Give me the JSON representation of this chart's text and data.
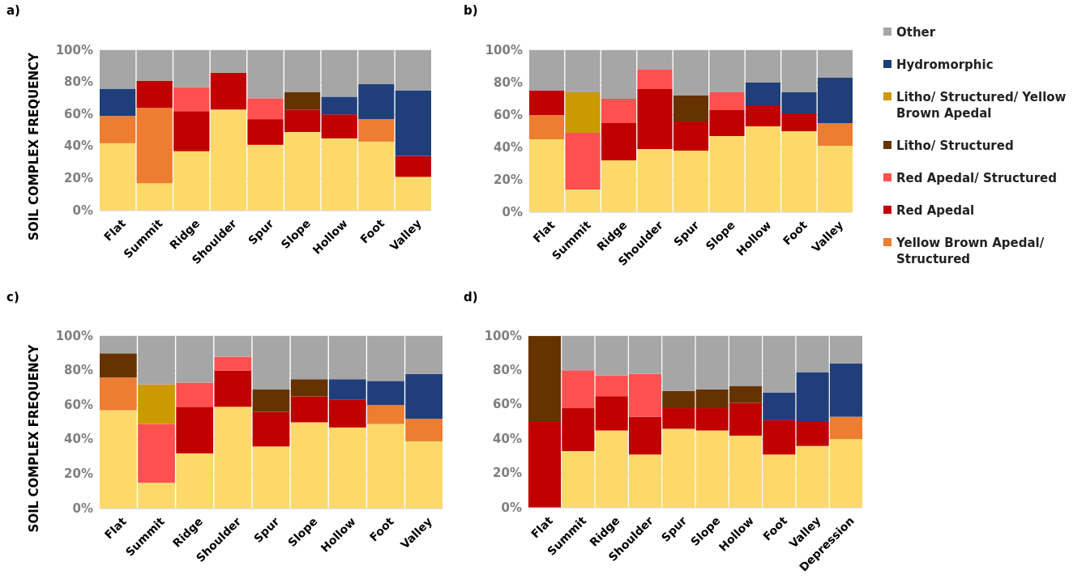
{
  "chart_data": [
    {
      "type": "bar",
      "title": "a)",
      "ylabel": "SOIL COMPLEX FREQUENCY",
      "stacked": true,
      "grid": "y",
      "legend": false,
      "categories": [
        "Flat",
        "Summit",
        "Ridge",
        "Shoulder",
        "Spur",
        "Slope",
        "Hollow",
        "Foot",
        "Valley"
      ],
      "ylim": [
        0,
        100
      ],
      "yticks": [
        {
          "value": 0,
          "label": "0%"
        },
        {
          "value": 20,
          "label": "20%"
        },
        {
          "value": 40,
          "label": "40%"
        },
        {
          "value": 60,
          "label": "60%"
        },
        {
          "value": 80,
          "label": "80%"
        },
        {
          "value": 100,
          "label": "100%"
        }
      ],
      "series": [
        {
          "color": "#fdd96b",
          "values": [
            42,
            17,
            37,
            63,
            41,
            49,
            45,
            43,
            21
          ]
        },
        {
          "color": "#ed7d31",
          "values": [
            17,
            47,
            null,
            null,
            null,
            null,
            null,
            14,
            null
          ]
        },
        {
          "color": "#c00000",
          "values": [
            null,
            17,
            25,
            23,
            16,
            14,
            15,
            null,
            13
          ]
        },
        {
          "color": "#ff5050",
          "values": [
            null,
            null,
            15,
            null,
            13,
            null,
            null,
            null,
            null
          ]
        },
        {
          "color": "#663300",
          "values": [
            null,
            null,
            null,
            null,
            null,
            11,
            null,
            null,
            null
          ]
        },
        {
          "color": "#203f7a",
          "values": [
            17,
            null,
            null,
            null,
            null,
            null,
            11,
            22,
            41
          ]
        },
        {
          "color": "#a6a6a6",
          "values": [
            24,
            19,
            23,
            14,
            30,
            26,
            29,
            21,
            25
          ]
        }
      ]
    },
    {
      "type": "bar",
      "title": "b)",
      "stacked": true,
      "grid": "y",
      "legend": "right",
      "categories": [
        "Flat",
        "Summit",
        "Ridge",
        "Shoulder",
        "Spur",
        "Slope",
        "Hollow",
        "Foot",
        "Valley"
      ],
      "ylim": [
        0,
        100
      ],
      "yticks": [
        {
          "value": 0,
          "label": "0%"
        },
        {
          "value": 20,
          "label": "20%"
        },
        {
          "value": 40,
          "label": "40%"
        },
        {
          "value": 60,
          "label": "60%"
        },
        {
          "value": 80,
          "label": "80%"
        },
        {
          "value": 100,
          "label": "100%"
        }
      ],
      "series": [
        {
          "color": "#fdd96b",
          "values": [
            45,
            14,
            32,
            39,
            38,
            47,
            53,
            50,
            41
          ]
        },
        {
          "name": "Yellow Brown Apedal/ Structured",
          "color": "#ed7d31",
          "values": [
            15,
            null,
            null,
            null,
            null,
            null,
            null,
            null,
            14
          ]
        },
        {
          "name": "Red Apedal",
          "color": "#c00000",
          "values": [
            15,
            null,
            23,
            37,
            18,
            16,
            13,
            11,
            null
          ]
        },
        {
          "name": "Red Apedal/ Structured",
          "color": "#ff5050",
          "values": [
            null,
            35,
            15,
            12,
            null,
            11,
            null,
            null,
            null
          ]
        },
        {
          "name": "Litho/ Structured",
          "color": "#663300",
          "values": [
            null,
            null,
            null,
            null,
            16,
            null,
            null,
            null,
            null
          ]
        },
        {
          "name": "Litho/ Structured/ Yellow Brown Apedal",
          "color": "#cc9900",
          "values": [
            null,
            25,
            null,
            null,
            null,
            null,
            null,
            null,
            null
          ]
        },
        {
          "name": "Hydromorphic",
          "color": "#203f7a",
          "values": [
            null,
            null,
            null,
            null,
            null,
            null,
            14,
            13,
            28
          ]
        },
        {
          "name": "Other",
          "color": "#a6a6a6",
          "values": [
            25,
            26,
            30,
            12,
            28,
            26,
            20,
            26,
            17
          ]
        }
      ]
    },
    {
      "type": "bar",
      "title": "c)",
      "ylabel": "SOIL COMPLEX FREQUENCY",
      "stacked": true,
      "grid": "y",
      "legend": false,
      "categories": [
        "Flat",
        "Summit",
        "Ridge",
        "Shoulder",
        "Spur",
        "Slope",
        "Hollow",
        "Foot",
        "Valley"
      ],
      "ylim": [
        0,
        100
      ],
      "yticks": [
        {
          "value": 0,
          "label": "0%"
        },
        {
          "value": 20,
          "label": "20%"
        },
        {
          "value": 40,
          "label": "40%"
        },
        {
          "value": 60,
          "label": "60%"
        },
        {
          "value": 80,
          "label": "80%"
        },
        {
          "value": 100,
          "label": "100%"
        }
      ],
      "series": [
        {
          "color": "#fdd96b",
          "values": [
            57,
            15,
            32,
            59,
            36,
            50,
            47,
            49,
            39
          ]
        },
        {
          "color": "#ed7d31",
          "values": [
            19,
            null,
            null,
            null,
            null,
            null,
            null,
            11,
            13
          ]
        },
        {
          "color": "#c00000",
          "values": [
            null,
            null,
            27,
            21,
            20,
            15,
            16,
            null,
            null
          ]
        },
        {
          "color": "#ff5050",
          "values": [
            null,
            34,
            14,
            8,
            null,
            null,
            null,
            null,
            null
          ]
        },
        {
          "color": "#663300",
          "values": [
            14,
            null,
            null,
            null,
            13,
            10,
            null,
            null,
            null
          ]
        },
        {
          "color": "#cc9900",
          "values": [
            null,
            23,
            null,
            null,
            null,
            null,
            null,
            null,
            null
          ]
        },
        {
          "color": "#203f7a",
          "values": [
            null,
            null,
            null,
            null,
            null,
            null,
            12,
            14,
            26
          ]
        },
        {
          "color": "#a6a6a6",
          "values": [
            10,
            28,
            27,
            12,
            31,
            25,
            25,
            26,
            22
          ]
        }
      ]
    },
    {
      "type": "bar",
      "title": "d)",
      "stacked": true,
      "grid": "y",
      "legend": false,
      "categories": [
        "Flat",
        "Summit",
        "Ridge",
        "Shoulder",
        "Spur",
        "Slope",
        "Hollow",
        "Foot",
        "Valley",
        "Depression"
      ],
      "ylim": [
        0,
        100
      ],
      "yticks": [
        {
          "value": 0,
          "label": "0%"
        },
        {
          "value": 20,
          "label": "20%"
        },
        {
          "value": 40,
          "label": "40%"
        },
        {
          "value": 60,
          "label": "60%"
        },
        {
          "value": 80,
          "label": "80%"
        },
        {
          "value": 100,
          "label": "100%"
        }
      ],
      "series": [
        {
          "color": "#fdd96b",
          "values": [
            null,
            33,
            45,
            31,
            46,
            45,
            42,
            31,
            36,
            40
          ]
        },
        {
          "color": "#ed7d31",
          "values": [
            null,
            null,
            null,
            null,
            null,
            null,
            null,
            null,
            null,
            13
          ]
        },
        {
          "color": "#c00000",
          "values": [
            50,
            25,
            20,
            22,
            12,
            13,
            19,
            20,
            14,
            null
          ]
        },
        {
          "color": "#ff5050",
          "values": [
            null,
            22,
            12,
            25,
            null,
            null,
            null,
            null,
            null,
            null
          ]
        },
        {
          "color": "#663300",
          "values": [
            50,
            null,
            null,
            null,
            10,
            11,
            10,
            null,
            null,
            null
          ]
        },
        {
          "color": "#203f7a",
          "values": [
            null,
            null,
            null,
            null,
            null,
            null,
            null,
            16,
            29,
            31
          ]
        },
        {
          "color": "#a6a6a6",
          "values": [
            null,
            20,
            23,
            22,
            32,
            31,
            29,
            33,
            21,
            16
          ]
        }
      ]
    }
  ]
}
